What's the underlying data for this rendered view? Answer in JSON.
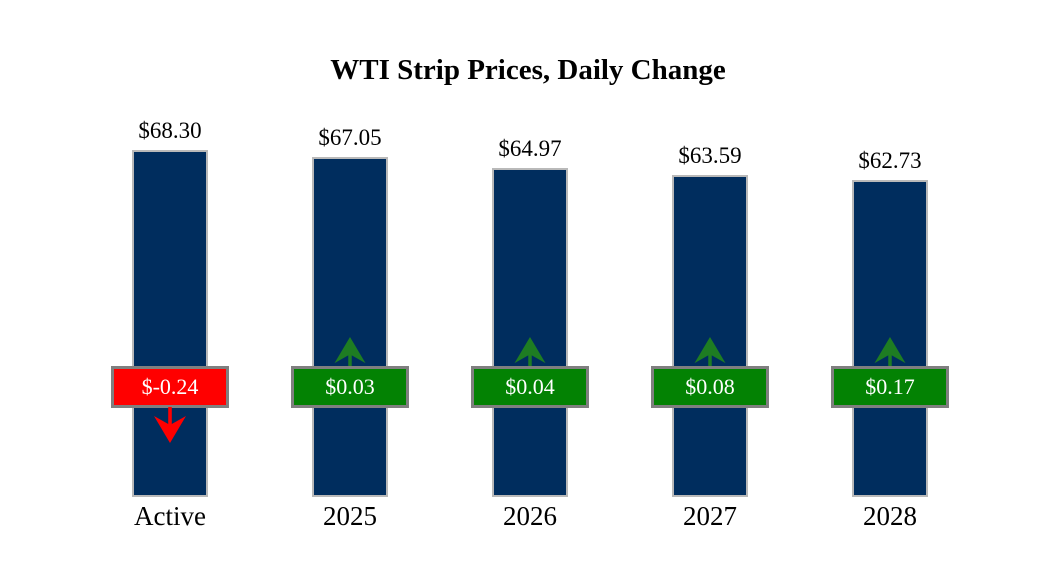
{
  "title": "WTI Strip Prices, Daily Change",
  "chart_data": {
    "type": "bar",
    "title": "WTI Strip Prices, Daily Change",
    "categories": [
      "Active",
      "2025",
      "2026",
      "2027",
      "2028"
    ],
    "values": [
      68.3,
      67.05,
      64.97,
      63.59,
      62.73
    ],
    "changes": [
      -0.24,
      0.03,
      0.04,
      0.08,
      0.17
    ],
    "value_labels": [
      "$68.30",
      "$67.05",
      "$64.97",
      "$63.59",
      "$62.73"
    ],
    "change_labels": [
      "$-0.24",
      "$0.03",
      "$0.04",
      "$0.08",
      "$0.17"
    ],
    "directions": [
      "down",
      "up",
      "up",
      "up",
      "up"
    ],
    "xlabel": "",
    "ylabel": "",
    "grid": false,
    "legend": false
  },
  "colors": {
    "background": "#FFFFFF",
    "text": "#000000",
    "bar_fill": "#002D5E",
    "bar_border": "#B9B9B9",
    "badge_border": "#7F7F7F",
    "badge_text": "#FFFFFF",
    "positive": "#038203",
    "negative": "#FF0000",
    "positive_arrow": "#1E7D22",
    "negative_arrow": "#FF0000"
  }
}
